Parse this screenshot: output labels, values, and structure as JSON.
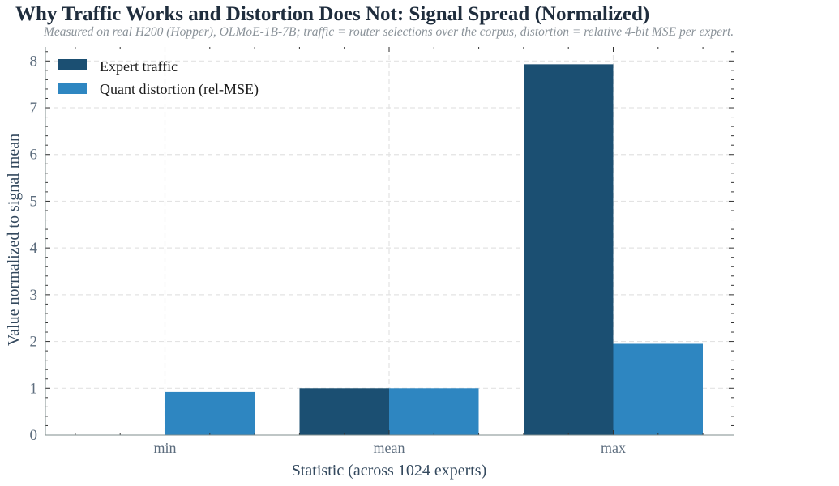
{
  "chart_data": {
    "type": "bar",
    "title": "Why Traffic Works and Distortion Does Not: Signal Spread (Normalized)",
    "subtitle": "Measured on real H200 (Hopper), OLMoE-1B-7B; traffic = router selections over the corpus, distortion = relative 4-bit MSE per expert.",
    "xlabel": "Statistic (across 1024 experts)",
    "ylabel": "Value normalized to signal mean",
    "categories": [
      "min",
      "mean",
      "max"
    ],
    "series": [
      {
        "name": "Expert traffic",
        "color": "#1b4f72",
        "values": [
          0.0,
          1.0,
          7.93
        ]
      },
      {
        "name": "Quant distortion (rel-MSE)",
        "color": "#2e86c1",
        "values": [
          0.92,
          1.0,
          1.95
        ]
      }
    ],
    "ylim": [
      0,
      8.3
    ],
    "yticks": [
      0,
      1,
      2,
      3,
      4,
      5,
      6,
      7,
      8
    ],
    "grid": true,
    "legend_position": "top-left"
  },
  "colors": {
    "title": "#1f2d3d",
    "subtitle": "#8a9299",
    "axis_label": "#34495e",
    "tick_label": "#5d6d7e",
    "grid": "#e3e3e3",
    "spine": "#7f8c8d"
  }
}
